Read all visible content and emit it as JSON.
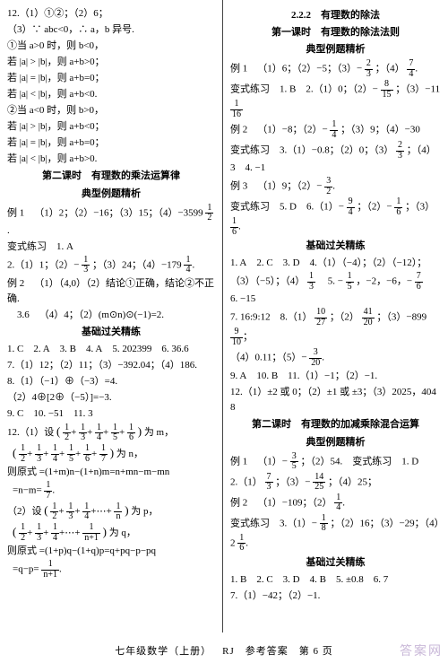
{
  "left": {
    "l1": "12.（1）①②；（2）6；",
    "l2": "（3）∵ abc<0，∴ a，b 异号.",
    "l3": "①当 a>0 时，则 b<0，",
    "l4": "若 |a| > |b|，则 a+b>0；",
    "l5": "若 |a| = |b|，则 a+b=0；",
    "l6": "若 |a| < |b|，则 a+b<0.",
    "l7": "②当 a<0 时，则 b>0，",
    "l8": "若 |a| > |b|，则 a+b<0；",
    "l9": "若 |a| = |b|，则 a+b=0；",
    "l10": "若 |a| < |b|，则 a+b>0.",
    "sec1": "第二课时 有理数的乘法运算律",
    "box1": "典型例题精析",
    "ex1a": "例 1 （1）2；（2）−16；（3）15；（4）−3599",
    "exvar1": "变式练习 1. A",
    "l2a": "2.（1）1；（2）−",
    "l2b": "；（3）24；（4）−179",
    "ex2": "例 2 （1）（4,0）（2）结论①正确，结论②不正确.",
    "l3a": " 3.6 （4）4；（2）(m⊙n)⊙(−1)=2.",
    "box2": "基础过关精练",
    "b1": "1. C 2. A 3. B 4. A 5. 202399 6. 36.6",
    "b2": "7.（1）12；（2）11；（3）−392.04；（4）186.",
    "b3": "8.（1）（−1）⊕（−3）=4.",
    "b4": "（2）4⊕[2⊕（−5）]=−3.",
    "b5": "9. C 10. −51 11. 3",
    "l12a": "12.（1）设",
    "l12an": "为 m，",
    "l12bn": "为 n，",
    "l12c": "则原式 =(1+m)n−(1+n)m=n+mn−m−mn",
    "l12d": "=n−m=",
    "l12e": "（2）设",
    "l12en": "为 p，",
    "l12fn": "为 q，",
    "l12g": "则原式 =(1+p)q−(1+q)p=q+pq−p−pq",
    "l12h": "=q−p="
  },
  "right": {
    "sec1": "2.2.2 有理数的除法",
    "sub1": "第一课时 有理数的除法法则",
    "box1": "典型例题精析",
    "r1a": "例 1 （1）6；（2）−5；（3）−",
    "r1b": "；（4）",
    "rv1a": "变式练习 1. B 2.（1）0；（2）−",
    "rv1b": "；（3）−11",
    "r2a": "例 2 （1）−8；（2）−",
    "r2b": "；（3）9；（4）−30",
    "rv2a": "变式练习 3.（1）−0.8；（2）0；（3）",
    "rv2b": "；（4）3 4. −1",
    "r3a": "例 3 （1）9；（2）−",
    "rv3": "变式练习 5. D 6.（1）−",
    "rv3b": "；（2）−",
    "rv3c": "；（3）",
    "box2": "基础过关精练",
    "rb1": "1. A 2. C 3. D 4.（1）（−4）；（2）（−12）；",
    "rb2a": "（3）（−5）；（4）",
    "rb2b": " 5. −",
    "rb2c": "，−2，−6，−",
    "rb2d": " 6. −15",
    "rb3a": "7. 16:9:12 8.（1）",
    "rb3b": "；（2）",
    "rb3c": "；（3）−899",
    "rb4a": "（4）0.11；（5）−",
    "rb5": "9. A 10. B 11.（1）−1；（2）−1.",
    "rb6": "12.（1）±2 或 0；（2）±1 或 ±3；（3）2025，4048",
    "sec2": "第二课时 有理数的加减乘除混合运算",
    "box3": "典型例题精析",
    "r4a": "例 1 （1）−",
    "r4b": "；（2）54. 变式练习 1. D",
    "r4c": "2.（1）",
    "r4d": "；（3）−",
    "r4e": "；（4）25；",
    "r5a": "例 2 （1）−109；（2）",
    "rv5a": "变式练习 3.（1）−",
    "rv5b": "；（2）16；（3）−29；（4）2",
    "box4": "基础过关精练",
    "rf1": "1. B 2. C 3. D 4. B 5. ±0.8 6. 7",
    "rf2": "7.（1）−42；（2）−1."
  },
  "fractions": {
    "half": {
      "n": "1",
      "d": "2"
    },
    "third": {
      "n": "1",
      "d": "3"
    },
    "quarter": {
      "n": "1",
      "d": "4"
    },
    "fifth": {
      "n": "1",
      "d": "5"
    },
    "sixth": {
      "n": "1",
      "d": "6"
    },
    "seventh": {
      "n": "1",
      "d": "7"
    },
    "eighth": {
      "n": "1",
      "d": "8"
    },
    "f2_3": {
      "n": "2",
      "d": "3"
    },
    "f7_4": {
      "n": "7",
      "d": "4"
    },
    "f8_15": {
      "n": "8",
      "d": "15"
    },
    "f1_16": {
      "n": "1",
      "d": "16"
    },
    "f3_2": {
      "n": "3",
      "d": "2"
    },
    "f9_4": {
      "n": "9",
      "d": "4"
    },
    "f1_6": {
      "n": "1",
      "d": "6"
    },
    "f7_6": {
      "n": "7",
      "d": "6"
    },
    "f10_27": {
      "n": "10",
      "d": "27"
    },
    "f41_20": {
      "n": "41",
      "d": "20"
    },
    "f9_10": {
      "n": "9",
      "d": "10"
    },
    "f3_20": {
      "n": "3",
      "d": "20"
    },
    "f3_5": {
      "n": "3",
      "d": "5"
    },
    "f7_3": {
      "n": "7",
      "d": "3"
    },
    "f14_25": {
      "n": "14",
      "d": "25"
    },
    "np1": {
      "n": "1",
      "d": "n+1"
    }
  },
  "sums": {
    "m": "1/2 + 1/3 + 1/4 + 1/5 + 1/6",
    "n": "1/2 + 1/3 + 1/4 + 1/5 + 1/6 + 1/7",
    "p": "1/2 + 1/3 + 1/4 + ⋯ + 1/n",
    "q": "1/2 + 1/3 + 1/4 + ⋯ + 1/(n+1)"
  },
  "footer": "七年级数学（上册） RJ 参考答案 第 6 页",
  "watermark": "答案网"
}
